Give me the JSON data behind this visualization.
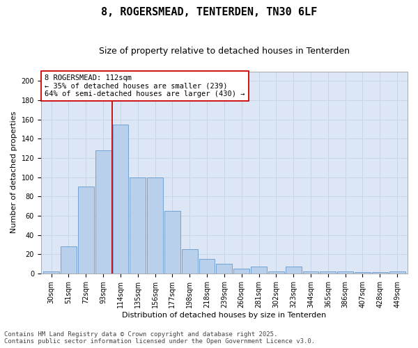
{
  "title": "8, ROGERSMEAD, TENTERDEN, TN30 6LF",
  "subtitle": "Size of property relative to detached houses in Tenterden",
  "xlabel": "Distribution of detached houses by size in Tenterden",
  "ylabel": "Number of detached properties",
  "footer_line1": "Contains HM Land Registry data © Crown copyright and database right 2025.",
  "footer_line2": "Contains public sector information licensed under the Open Government Licence v3.0.",
  "annotation_line1": "8 ROGERSMEAD: 112sqm",
  "annotation_line2": "← 35% of detached houses are smaller (239)",
  "annotation_line3": "64% of semi-detached houses are larger (430) →",
  "bar_heights": [
    2,
    28,
    90,
    128,
    155,
    100,
    100,
    65,
    25,
    15,
    10,
    5,
    7,
    2,
    7,
    2,
    2,
    2,
    1,
    1,
    2
  ],
  "bin_labels": [
    "30sqm",
    "51sqm",
    "72sqm",
    "93sqm",
    "114sqm",
    "135sqm",
    "156sqm",
    "177sqm",
    "198sqm",
    "218sqm",
    "239sqm",
    "260sqm",
    "281sqm",
    "302sqm",
    "323sqm",
    "344sqm",
    "365sqm",
    "386sqm",
    "407sqm",
    "428sqm",
    "449sqm"
  ],
  "bar_color": "#b8d0eb",
  "bar_edgecolor": "#6699cc",
  "vline_color": "#cc0000",
  "vline_bin": 4,
  "ylim": [
    0,
    210
  ],
  "yticks": [
    0,
    20,
    40,
    60,
    80,
    100,
    120,
    140,
    160,
    180,
    200
  ],
  "grid_color": "#c8d4e8",
  "bg_color": "#dce6f5",
  "title_fontsize": 11,
  "subtitle_fontsize": 9,
  "axis_label_fontsize": 8,
  "tick_fontsize": 7,
  "annotation_fontsize": 7.5,
  "footer_fontsize": 6.5
}
